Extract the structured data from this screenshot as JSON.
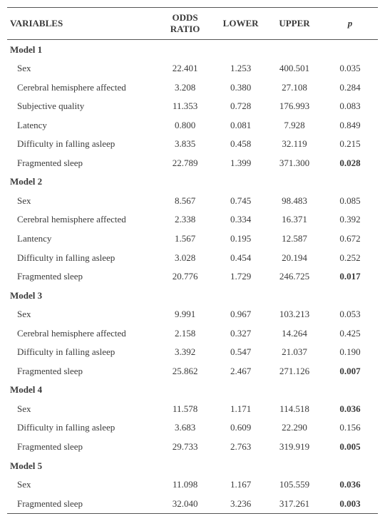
{
  "columns": [
    "VARIABLES",
    "ODDS RATIO",
    "LOWER",
    "UPPER",
    "p"
  ],
  "header_p_italic": true,
  "models": [
    {
      "name": "Model 1",
      "rows": [
        {
          "v": "Sex",
          "or": "22.401",
          "lo": "1.253",
          "up": "400.501",
          "p": "0.035",
          "pb": false
        },
        {
          "v": "Cerebral hemisphere affected",
          "or": "3.208",
          "lo": "0.380",
          "up": "27.108",
          "p": "0.284",
          "pb": false
        },
        {
          "v": "Subjective quality",
          "or": "11.353",
          "lo": "0.728",
          "up": "176.993",
          "p": "0.083",
          "pb": false
        },
        {
          "v": "Latency",
          "or": "0.800",
          "lo": "0.081",
          "up": "7.928",
          "p": "0.849",
          "pb": false
        },
        {
          "v": "Difficulty in falling asleep",
          "or": "3.835",
          "lo": "0.458",
          "up": "32.119",
          "p": "0.215",
          "pb": false
        },
        {
          "v": "Fragmented sleep",
          "or": "22.789",
          "lo": "1.399",
          "up": "371.300",
          "p": "0.028",
          "pb": true
        }
      ]
    },
    {
      "name": "Model 2",
      "rows": [
        {
          "v": "Sex",
          "or": "8.567",
          "lo": "0.745",
          "up": "98.483",
          "p": "0.085",
          "pb": false
        },
        {
          "v": "Cerebral hemisphere affected",
          "or": "2.338",
          "lo": "0.334",
          "up": "16.371",
          "p": "0.392",
          "pb": false
        },
        {
          "v": "Lantency",
          "or": "1.567",
          "lo": "0.195",
          "up": "12.587",
          "p": "0.672",
          "pb": false
        },
        {
          "v": "Difficulty in falling asleep",
          "or": "3.028",
          "lo": "0.454",
          "up": "20.194",
          "p": "0.252",
          "pb": false
        },
        {
          "v": "Fragmented sleep",
          "or": "20.776",
          "lo": "1.729",
          "up": "246.725",
          "p": "0.017",
          "pb": true
        }
      ]
    },
    {
      "name": "Model 3",
      "rows": [
        {
          "v": "Sex",
          "or": "9.991",
          "lo": "0.967",
          "up": "103.213",
          "p": "0.053",
          "pb": false
        },
        {
          "v": "Cerebral hemisphere affected",
          "or": "2.158",
          "lo": "0.327",
          "up": "14.264",
          "p": "0.425",
          "pb": false
        },
        {
          "v": "Difficulty in falling asleep",
          "or": "3.392",
          "lo": "0.547",
          "up": "21.037",
          "p": "0.190",
          "pb": false
        },
        {
          "v": "Fragmented sleep",
          "or": "25.862",
          "lo": "2.467",
          "up": "271.126",
          "p": "0.007",
          "pb": true
        }
      ]
    },
    {
      "name": "Model 4",
      "rows": [
        {
          "v": "Sex",
          "or": "11.578",
          "lo": "1.171",
          "up": "114.518",
          "p": "0.036",
          "pb": true
        },
        {
          "v": "Difficulty in falling asleep",
          "or": "3.683",
          "lo": "0.609",
          "up": "22.290",
          "p": "0.156",
          "pb": false
        },
        {
          "v": "Fragmented sleep",
          "or": "29.733",
          "lo": "2.763",
          "up": "319.919",
          "p": "0.005",
          "pb": true
        }
      ]
    },
    {
      "name": "Model 5",
      "rows": [
        {
          "v": "Sex",
          "or": "11.098",
          "lo": "1.167",
          "up": "105.559",
          "p": "0.036",
          "pb": true
        },
        {
          "v": "Fragmented sleep",
          "or": "32.040",
          "lo": "3.236",
          "up": "317.261",
          "p": "0.003",
          "pb": true
        }
      ]
    }
  ]
}
